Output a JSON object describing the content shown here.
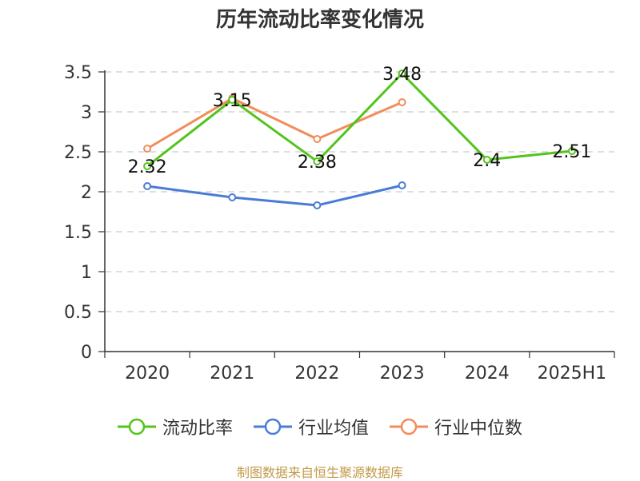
{
  "title": "历年流动比率变化情况",
  "source": "制图数据来自恒生聚源数据库",
  "colors": {
    "current_ratio": "#52c41a",
    "industry_avg": "#4a7bd6",
    "industry_median": "#f28c5a"
  },
  "chart_data": {
    "type": "line",
    "title": "历年流动比率变化情况",
    "categories": [
      "2020",
      "2021",
      "2022",
      "2023",
      "2024",
      "2025H1"
    ],
    "yticks": [
      "0",
      "0.5",
      "1",
      "1.5",
      "2",
      "2.5",
      "3",
      "3.5"
    ],
    "ylim": [
      0,
      3.5
    ],
    "grid": true,
    "legend_position": "bottom",
    "series": [
      {
        "name": "流动比率",
        "values": [
          2.32,
          3.15,
          2.38,
          3.48,
          2.4,
          2.51
        ],
        "labels": [
          "2.32",
          "3.15",
          "2.38",
          "3.48",
          "2.4",
          "2.51"
        ],
        "color": "#52c41a"
      },
      {
        "name": "行业均值",
        "values": [
          2.07,
          1.93,
          1.83,
          2.08,
          null,
          null
        ],
        "color": "#4a7bd6"
      },
      {
        "name": "行业中位数",
        "values": [
          2.54,
          3.17,
          2.66,
          3.12,
          null,
          null
        ],
        "color": "#f28c5a"
      }
    ]
  }
}
